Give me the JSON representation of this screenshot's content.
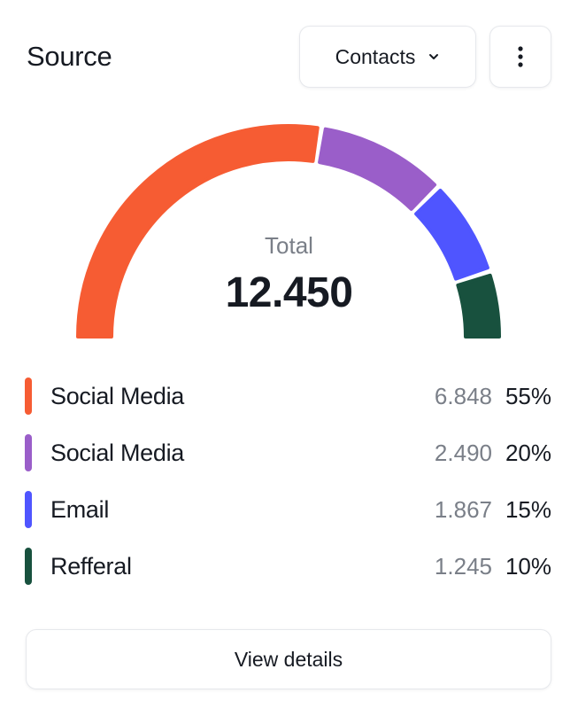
{
  "header": {
    "title": "Source",
    "dropdown_label": "Contacts",
    "dropdown_icon": "chevron-down-icon",
    "more_icon": "more-vertical-icon"
  },
  "summary": {
    "total_label": "Total",
    "total_value": "12.450"
  },
  "chart_data": {
    "type": "pie",
    "shape": "semi-donut gauge",
    "categories": [
      "Social Media",
      "Social Media",
      "Email",
      "Refferal"
    ],
    "values": [
      6848,
      2490,
      1867,
      1245
    ],
    "value_labels": [
      "6.848",
      "2.490",
      "1.867",
      "1.245"
    ],
    "percent_labels": [
      "55%",
      "20%",
      "15%",
      "10%"
    ],
    "percents": [
      55,
      20,
      15,
      10
    ],
    "colors": [
      "#f65c33",
      "#9a5ec9",
      "#4f55ff",
      "#18513e"
    ],
    "legend_position": "bottom"
  },
  "footer": {
    "details_label": "View details"
  }
}
